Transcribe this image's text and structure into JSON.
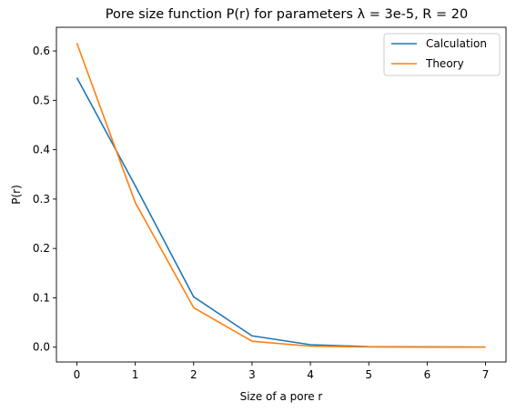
{
  "chart_data": {
    "type": "line",
    "title": "Pore size function P(r) for parameters λ = 3e-5, R = 20",
    "xlabel": "Size of a pore r",
    "ylabel": "P(r)",
    "x": [
      0,
      1,
      2,
      3,
      4,
      5,
      6,
      7
    ],
    "xlim": [
      -0.35,
      7.35
    ],
    "ylim": [
      -0.03,
      0.648
    ],
    "xticks": [
      0,
      1,
      2,
      3,
      4,
      5,
      6,
      7
    ],
    "yticks": [
      0.0,
      0.1,
      0.2,
      0.3,
      0.4,
      0.5,
      0.6
    ],
    "ytick_labels": [
      "0.0",
      "0.1",
      "0.2",
      "0.3",
      "0.4",
      "0.5",
      "0.6"
    ],
    "grid": false,
    "legend_position": "top-right",
    "series": [
      {
        "name": "Calculation",
        "color": "#1f77b4",
        "values": [
          0.546,
          0.327,
          0.102,
          0.023,
          0.005,
          0.001,
          0.0005,
          0.0001
        ]
      },
      {
        "name": "Theory",
        "color": "#ff7f0e",
        "values": [
          0.616,
          0.293,
          0.08,
          0.012,
          0.002,
          0.0005,
          0.0001,
          0.0
        ]
      }
    ]
  }
}
